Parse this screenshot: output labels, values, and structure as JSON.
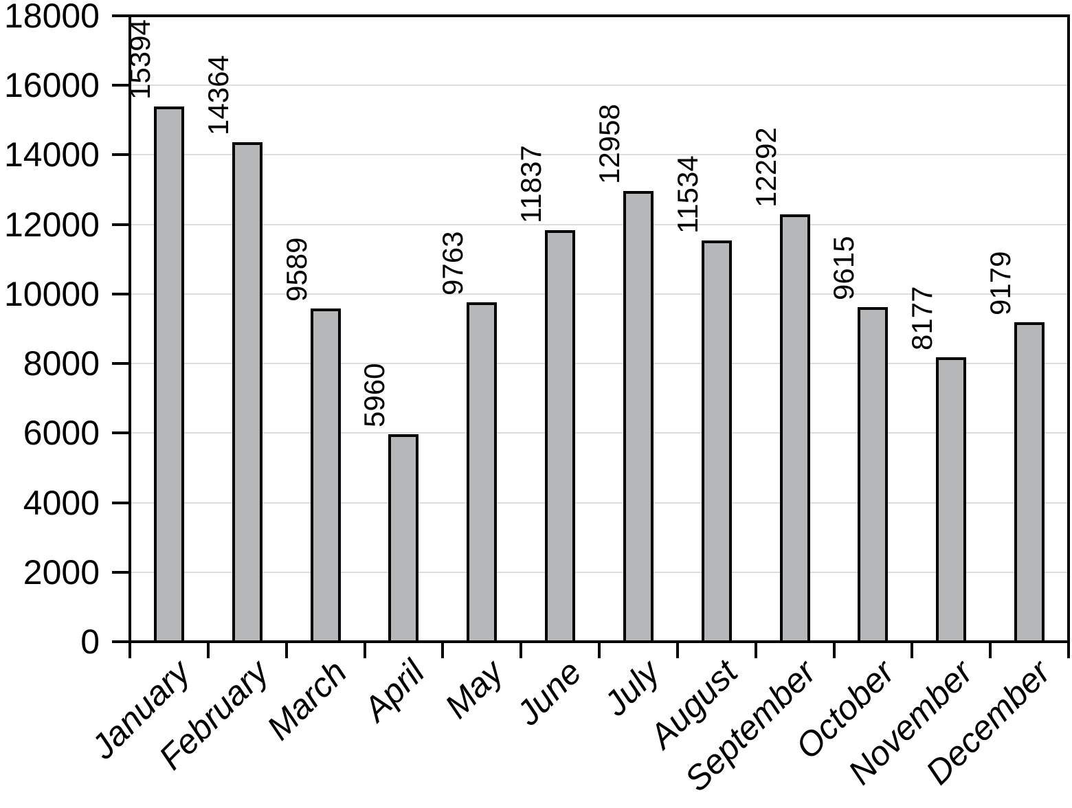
{
  "chart_data": {
    "type": "bar",
    "title": "",
    "xlabel": "",
    "ylabel": "",
    "categories": [
      "January",
      "February",
      "March",
      "April",
      "May",
      "June",
      "July",
      "August",
      "September",
      "October",
      "November",
      "December"
    ],
    "values": [
      15394,
      14364,
      9589,
      5960,
      9763,
      11837,
      12958,
      11534,
      12292,
      9615,
      8177,
      9179
    ],
    "bar_value_labels": [
      "15394",
      "14364",
      "9589",
      "5960",
      "9763",
      "11837",
      "12958",
      "11534",
      "12292",
      "9615",
      "8177",
      "9179"
    ],
    "ylim": [
      0,
      18000
    ],
    "ytick_step": 2000,
    "yticks": [
      0,
      2000,
      4000,
      6000,
      8000,
      10000,
      12000,
      14000,
      16000,
      18000
    ],
    "ytick_labels": [
      "0",
      "2000",
      "4000",
      "6000",
      "8000",
      "10000",
      "12000",
      "14000",
      "16000",
      "18000"
    ],
    "grid": true,
    "gridlines_at": [
      2000,
      4000,
      6000,
      8000,
      10000,
      12000,
      14000,
      16000
    ],
    "legend": false,
    "bar_value_label_rotation_deg": -90,
    "x_label_rotation_deg": -45,
    "colors": {
      "bar_fill": "#b5b7b8",
      "bar_border": "#000000",
      "gridline": "#dcdcdc",
      "axis": "#000000",
      "text": "#000000",
      "background": "#ffffff"
    }
  }
}
